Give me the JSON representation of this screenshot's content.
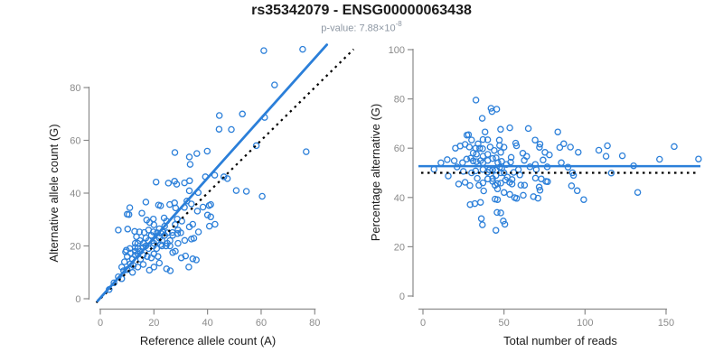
{
  "title": "rs35342079 - ENSG00000063438",
  "subtitle": {
    "text": "p-value: 7.88×10",
    "exponent": "-8"
  },
  "colors": {
    "accent": "#2b7fd9",
    "dotted_line": "#000000",
    "axis": "#8a8a8a",
    "tick_label": "#8a8a8a",
    "title": "#1a1a1a",
    "subtitle": "#8d97a3",
    "background": "#ffffff"
  },
  "chart_data": [
    {
      "type": "scatter",
      "panel": "left",
      "xlabel": "Reference allele count (A)",
      "ylabel": "Alternative allele count (G)",
      "xticks": [
        0,
        20,
        40,
        60,
        80
      ],
      "yticks": [
        0,
        20,
        40,
        60,
        80
      ],
      "xlim": [
        0,
        84
      ],
      "ylim": [
        0,
        96
      ],
      "marker": "open-circle",
      "grid": false,
      "points": [
        [
          61,
          94
        ],
        [
          75.5,
          94.5
        ],
        [
          65,
          81
        ],
        [
          53,
          70
        ],
        [
          44.4,
          69.4
        ],
        [
          48.9,
          64.1
        ],
        [
          44.3,
          64.2
        ],
        [
          61.3,
          68.7
        ],
        [
          58.2,
          58
        ],
        [
          76.8,
          55.7
        ],
        [
          39.9,
          55.9
        ],
        [
          33.2,
          53.7
        ],
        [
          27.8,
          55.4
        ],
        [
          36,
          55
        ],
        [
          33.5,
          50.9
        ],
        [
          46.1,
          46.2
        ],
        [
          47.4,
          45.5
        ],
        [
          42.7,
          46.8
        ],
        [
          60.4,
          38.8
        ],
        [
          20.8,
          44.2
        ],
        [
          25.4,
          43.8
        ],
        [
          27.7,
          44.5
        ],
        [
          28.5,
          43.4
        ],
        [
          31.4,
          43.9
        ],
        [
          33.3,
          44.7
        ],
        [
          33.2,
          40.9
        ],
        [
          36.5,
          40.2
        ],
        [
          39.2,
          46.2
        ],
        [
          50.7,
          41
        ],
        [
          54.5,
          40.7
        ],
        [
          17,
          36.6
        ],
        [
          15.5,
          32.4
        ],
        [
          10.7,
          31.9
        ],
        [
          10.2,
          26.4
        ],
        [
          21.7,
          35.5
        ],
        [
          22.5,
          35.2
        ],
        [
          25.9,
          35.7
        ],
        [
          27.7,
          36.3
        ],
        [
          28.1,
          34.4
        ],
        [
          31.4,
          34.6
        ],
        [
          32.3,
          37
        ],
        [
          34,
          35.9
        ],
        [
          36.2,
          33.2
        ],
        [
          38.3,
          34.7
        ],
        [
          41.2,
          35.7
        ],
        [
          40.6,
          35.3
        ],
        [
          40,
          31.7
        ],
        [
          41.2,
          31
        ],
        [
          42.8,
          28.2
        ],
        [
          40.7,
          27.5
        ],
        [
          34.5,
          28.2
        ],
        [
          33.2,
          27.2
        ],
        [
          28.7,
          30.2
        ],
        [
          30.4,
          29.4
        ],
        [
          27.9,
          28.1
        ],
        [
          23.8,
          30.6
        ],
        [
          24.7,
          29.4
        ],
        [
          19.8,
          30.2
        ],
        [
          17.3,
          29.8
        ],
        [
          18.4,
          28.9
        ],
        [
          11,
          34.5
        ],
        [
          10,
          32
        ],
        [
          12.8,
          25.5
        ],
        [
          14.6,
          25.3
        ],
        [
          16.4,
          25.1
        ],
        [
          19.8,
          25.3
        ],
        [
          21.2,
          25
        ],
        [
          22.6,
          24.8
        ],
        [
          23.4,
          25.2
        ],
        [
          26.9,
          25.1
        ],
        [
          28.8,
          24.7
        ],
        [
          36.6,
          25.3
        ],
        [
          31.5,
          22.1
        ],
        [
          34,
          22.6
        ],
        [
          34.9,
          22.9
        ],
        [
          9.7,
          18.4
        ],
        [
          9.4,
          17.7
        ],
        [
          11.3,
          17.3
        ],
        [
          13,
          21
        ],
        [
          13,
          19.5
        ],
        [
          13,
          18
        ],
        [
          13,
          16.5
        ],
        [
          14,
          21
        ],
        [
          14,
          19
        ],
        [
          14,
          17
        ],
        [
          16,
          19.5
        ],
        [
          17,
          20
        ],
        [
          18,
          19
        ],
        [
          19.8,
          20
        ],
        [
          21,
          19
        ],
        [
          22.5,
          20.5
        ],
        [
          23,
          20
        ],
        [
          24.5,
          20
        ],
        [
          27,
          17.5
        ],
        [
          28,
          18
        ],
        [
          30.2,
          15.5
        ],
        [
          31.8,
          16.2
        ],
        [
          34.5,
          15.1
        ],
        [
          35.8,
          14.7
        ],
        [
          15,
          15
        ],
        [
          16,
          16.5
        ],
        [
          17.5,
          16
        ],
        [
          19,
          15.5
        ],
        [
          20,
          17
        ],
        [
          21.5,
          16
        ],
        [
          24.7,
          11.3
        ],
        [
          26.1,
          10.6
        ],
        [
          18.3,
          10.8
        ],
        [
          11.2,
          13.2
        ],
        [
          12.3,
          12.6
        ],
        [
          8.7,
          10.6
        ],
        [
          6.7,
          8.3
        ],
        [
          8,
          7.6
        ],
        [
          5.1,
          6
        ],
        [
          3.3,
          3.5
        ],
        [
          33,
          12
        ],
        [
          10,
          11
        ],
        [
          12,
          10
        ],
        [
          14,
          12
        ],
        [
          16,
          13
        ],
        [
          20,
          12
        ],
        [
          22,
          13.5
        ],
        [
          15,
          18
        ],
        [
          16,
          21
        ],
        [
          17,
          23
        ],
        [
          18,
          22
        ],
        [
          19,
          24
        ],
        [
          20,
          21
        ],
        [
          21,
          22
        ],
        [
          22,
          23
        ],
        [
          23,
          22
        ],
        [
          24,
          24
        ],
        [
          25,
          21
        ],
        [
          25,
          25
        ],
        [
          26,
          22
        ],
        [
          27,
          24
        ],
        [
          29,
          26
        ],
        [
          12,
          15
        ],
        [
          11,
          19
        ],
        [
          10,
          16
        ],
        [
          9,
          14
        ],
        [
          8,
          12
        ],
        [
          6.7,
          26
        ],
        [
          14.8,
          22
        ],
        [
          18,
          26
        ],
        [
          20,
          28
        ],
        [
          22,
          26.5
        ],
        [
          24,
          27.5
        ],
        [
          26,
          20
        ],
        [
          29,
          21
        ],
        [
          30,
          25
        ],
        [
          13.5,
          23.5
        ]
      ],
      "fit_line": {
        "slope": 1.135,
        "intercept": 0.3,
        "x_range": [
          -1,
          84.5
        ],
        "style": "solid",
        "color": "#2b7fd9"
      },
      "identity_line": {
        "slope": 1,
        "intercept": 0,
        "x_range": [
          -1.5,
          94.5
        ],
        "style": "dotted",
        "color": "#000000"
      }
    },
    {
      "type": "scatter",
      "panel": "right",
      "xlabel": "Total number of reads",
      "ylabel": "Percentage alternative (G)",
      "xticks": [
        0,
        50,
        100,
        150
      ],
      "yticks": [
        0,
        20,
        40,
        60,
        80,
        100
      ],
      "xlim": [
        0,
        172
      ],
      "ylim": [
        0,
        100
      ],
      "marker": "open-circle",
      "grid": false,
      "points_derived": "x = ref+alt, y = 100*alt/(ref+alt), computed from left panel (ref,alt) pairs",
      "mean_line": {
        "value": 52.7,
        "style": "solid",
        "color": "#2b7fd9"
      },
      "reference_line": {
        "value": 50,
        "style": "dotted",
        "color": "#000000"
      }
    }
  ]
}
